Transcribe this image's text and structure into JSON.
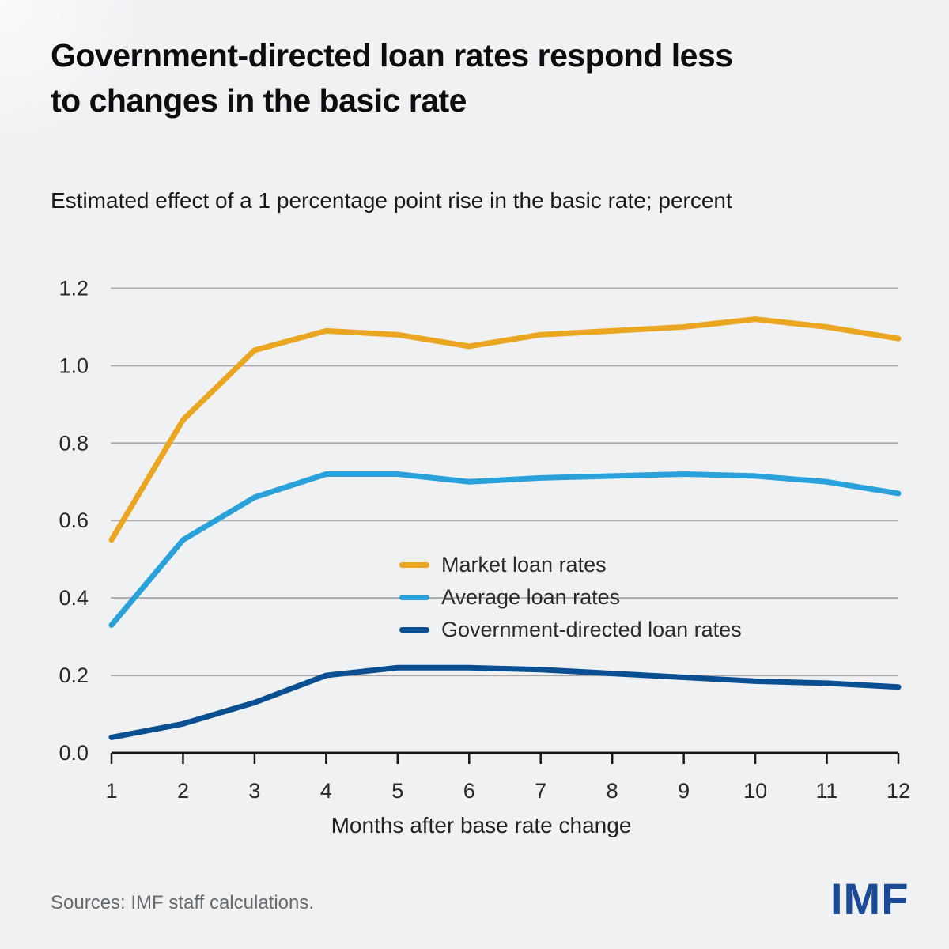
{
  "header": {
    "title_line1": "Government-directed loan rates respond less",
    "title_line2": "to changes in the basic rate",
    "subtitle": "Estimated effect of a 1 percentage point rise in the basic rate; percent"
  },
  "chart_data": {
    "type": "line",
    "x": [
      1,
      2,
      3,
      4,
      5,
      6,
      7,
      8,
      9,
      10,
      11,
      12
    ],
    "x_tick_labels": [
      "1",
      "2",
      "3",
      "4",
      "5",
      "6",
      "7",
      "8",
      "9",
      "10",
      "11",
      "12"
    ],
    "xlabel": "Months after base rate change",
    "ylim": [
      0,
      1.2
    ],
    "y_ticks": [
      0.0,
      0.2,
      0.4,
      0.6,
      0.8,
      1.0,
      1.2
    ],
    "y_tick_labels": [
      "0.0",
      "0.2",
      "0.4",
      "0.6",
      "0.8",
      "1.0",
      "1.2"
    ],
    "grid": "horizontal",
    "legend_position": "inside-center-right",
    "series": [
      {
        "name": "Market loan rates",
        "color": "#eaa521",
        "values": [
          0.55,
          0.86,
          1.04,
          1.09,
          1.08,
          1.05,
          1.08,
          1.09,
          1.1,
          1.12,
          1.1,
          1.07
        ]
      },
      {
        "name": "Average loan rates",
        "color": "#29a2dc",
        "values": [
          0.33,
          0.55,
          0.66,
          0.72,
          0.72,
          0.7,
          0.71,
          0.715,
          0.72,
          0.715,
          0.7,
          0.67
        ]
      },
      {
        "name": "Government-directed loan rates",
        "color": "#0a4f91",
        "values": [
          0.04,
          0.075,
          0.13,
          0.2,
          0.22,
          0.22,
          0.215,
          0.205,
          0.195,
          0.185,
          0.18,
          0.17
        ]
      }
    ]
  },
  "footer": {
    "sources": "Sources: IMF staff calculations.",
    "logo": "IMF"
  },
  "colors": {
    "background": "#f0f1f2",
    "gridline": "#ababab",
    "axis": "#1a1a1a",
    "logo_blue": "#1b4a97"
  }
}
